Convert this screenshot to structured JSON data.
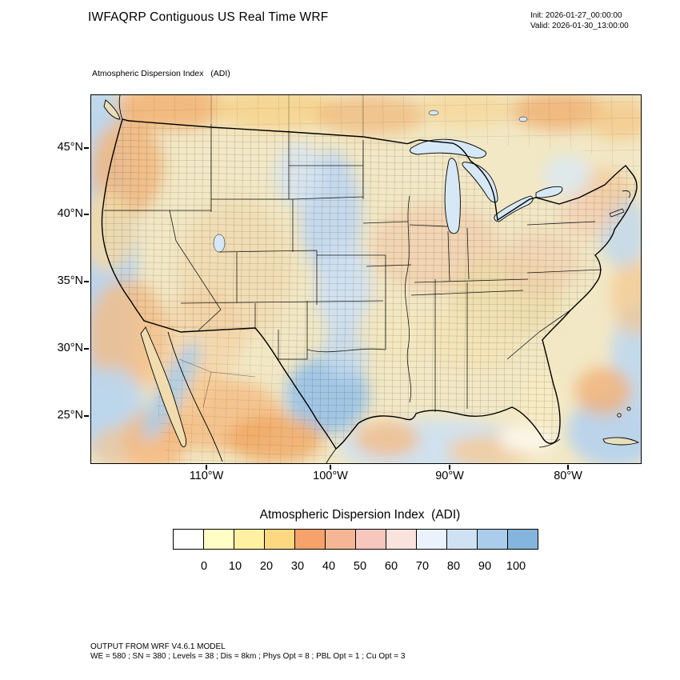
{
  "header": {
    "title": "IWFAQRP Contiguous US Real Time WRF",
    "init_line": "Init: 2026-01-27_00:00:00",
    "valid_line": "Valid: 2026-01-30_13:00:00"
  },
  "map": {
    "subtitle": "Atmospheric Dispersion Index   (ADI)",
    "lat_labels": [
      "45°N",
      "40°N",
      "35°N",
      "30°N",
      "25°N"
    ],
    "lon_labels": [
      "110°W",
      "100°W",
      "90°W",
      "80°W"
    ]
  },
  "colorbar": {
    "title": "Atmospheric Dispersion Index  (ADI)",
    "ticks": [
      "0",
      "10",
      "20",
      "30",
      "40",
      "50",
      "60",
      "70",
      "80",
      "90",
      "100"
    ],
    "colors": [
      "#ffffff",
      "#fffec4",
      "#fff0a2",
      "#fed881",
      "#f8a26b",
      "#f5b695",
      "#f7c6bd",
      "#fbe3dd",
      "#eaf2fb",
      "#cfe2f4",
      "#a9cdea",
      "#84b5dd"
    ]
  },
  "footer": {
    "line1": "OUTPUT FROM WRF V4.6.1 MODEL",
    "line2": "WE = 580 ; SN = 380 ; Levels = 38 ; Dis = 8km ; Phys Opt = 8 ; PBL Opt = 1 ; Cu Opt = 3"
  }
}
